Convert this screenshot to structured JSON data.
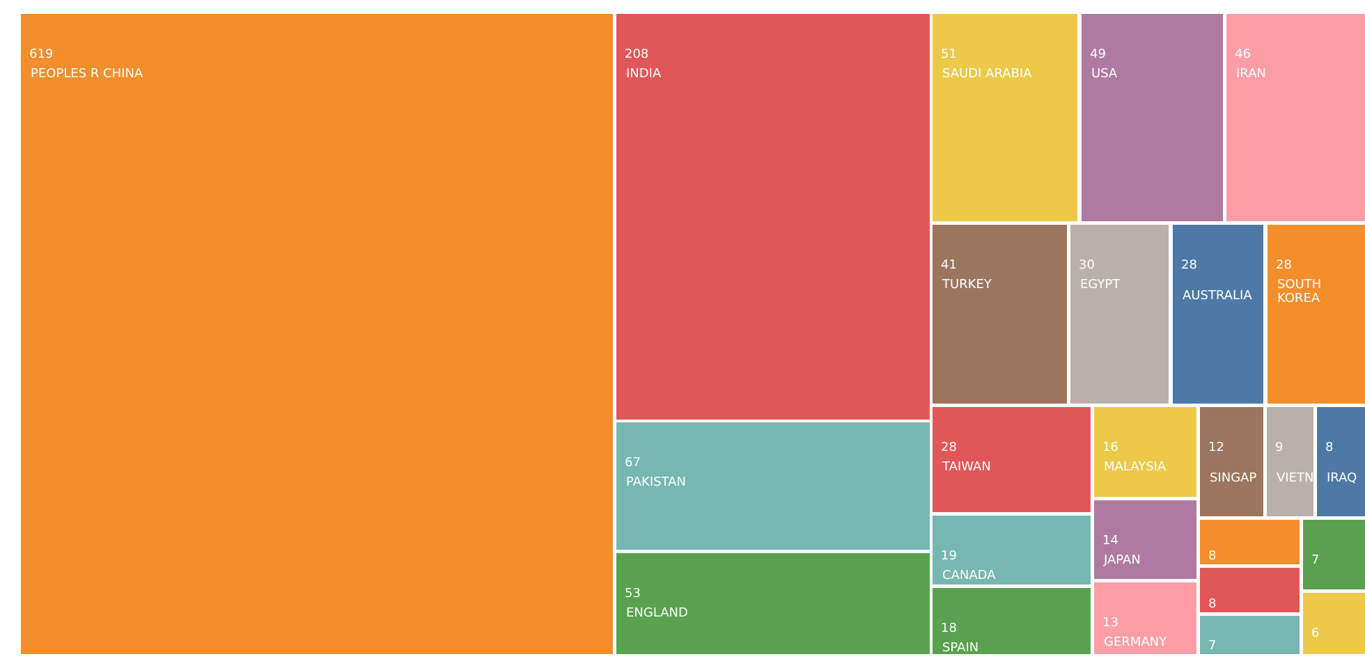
{
  "chart_data": {
    "type": "treemap",
    "nodes": [
      {
        "name": "PEOPLES R CHINA",
        "value": 619,
        "color": "#F28E2C"
      },
      {
        "name": "INDIA",
        "value": 208,
        "color": "#E15759"
      },
      {
        "name": "PAKISTAN",
        "value": 67,
        "color": "#76B7B2"
      },
      {
        "name": "ENGLAND",
        "value": 53,
        "color": "#59A14F"
      },
      {
        "name": "SAUDI ARABIA",
        "value": 51,
        "color": "#EDC949"
      },
      {
        "name": "USA",
        "value": 49,
        "color": "#AF7AA1"
      },
      {
        "name": "IRAN",
        "value": 46,
        "color": "#FF9DA7"
      },
      {
        "name": "TURKEY",
        "value": 41,
        "color": "#9C755F"
      },
      {
        "name": "EGYPT",
        "value": 30,
        "color": "#BAB0AB"
      },
      {
        "name": "AUSTRALIA",
        "value": 28,
        "color": "#4E79A7"
      },
      {
        "name": "SOUTH KOREA",
        "value": 28,
        "color": "#F28E2C"
      },
      {
        "name": "TAIWAN",
        "value": 28,
        "color": "#E15759"
      },
      {
        "name": "CANADA",
        "value": 19,
        "color": "#76B7B2"
      },
      {
        "name": "SPAIN",
        "value": 18,
        "color": "#59A14F"
      },
      {
        "name": "MALAYSIA",
        "value": 16,
        "color": "#EDC949"
      },
      {
        "name": "JAPAN",
        "value": 14,
        "color": "#AF7AA1"
      },
      {
        "name": "GERMANY",
        "value": 13,
        "color": "#FF9DA7"
      },
      {
        "name": "SINGAP",
        "value": 12,
        "color": "#9C755F"
      },
      {
        "name": "VIETN",
        "value": 9,
        "color": "#BAB0AB"
      },
      {
        "name": "IRAQ",
        "value": 8,
        "color": "#4E79A7"
      },
      {
        "name": "",
        "value": 8,
        "color": "#F28E2C"
      },
      {
        "name": "",
        "value": 8,
        "color": "#E15759"
      },
      {
        "name": "",
        "value": 7,
        "color": "#76B7B2"
      },
      {
        "name": "",
        "value": 7,
        "color": "#59A14F"
      },
      {
        "name": "",
        "value": 6,
        "color": "#EDC949"
      }
    ]
  }
}
